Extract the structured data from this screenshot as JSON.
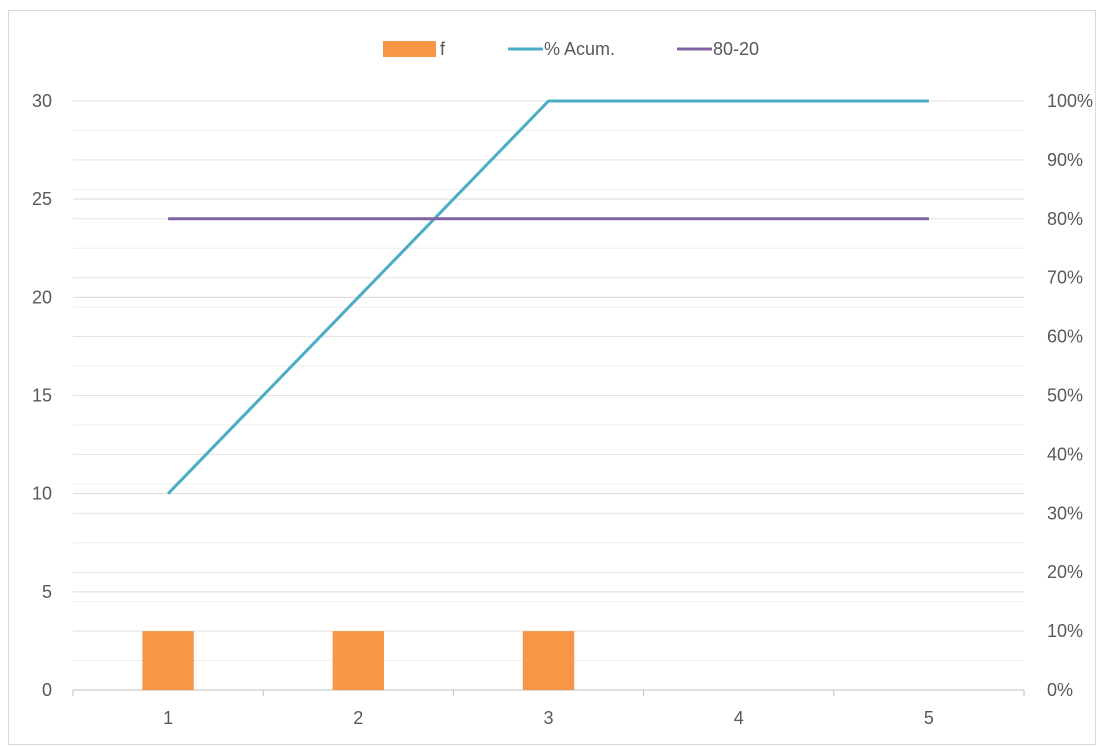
{
  "chart_data": {
    "type": "bar",
    "title": "",
    "xlabel": "",
    "ylabel": "",
    "categories": [
      "1",
      "2",
      "3",
      "4",
      "5"
    ],
    "ylim": [
      0,
      30
    ],
    "y_ticks": [
      "0",
      "5",
      "10",
      "15",
      "20",
      "25",
      "30"
    ],
    "y2lim": [
      0,
      1
    ],
    "y2_ticks": [
      "0%",
      "10%",
      "20%",
      "30%",
      "40%",
      "50%",
      "60%",
      "70%",
      "80%",
      "90%",
      "100%"
    ],
    "grid": true,
    "legend_position": "top",
    "series": [
      {
        "name": "f",
        "type": "bar",
        "axis": "left",
        "color": "#f79646",
        "values": [
          3,
          3,
          3,
          0,
          0
        ]
      },
      {
        "name": "% Acum.",
        "type": "line",
        "axis": "right",
        "color": "#4bacc6",
        "values": [
          0.3333,
          0.6667,
          1.0,
          1.0,
          1.0
        ]
      },
      {
        "name": "80-20",
        "type": "line",
        "axis": "right",
        "color": "#8064a2",
        "values": [
          0.8,
          0.8,
          0.8,
          0.8,
          0.8
        ]
      }
    ]
  }
}
